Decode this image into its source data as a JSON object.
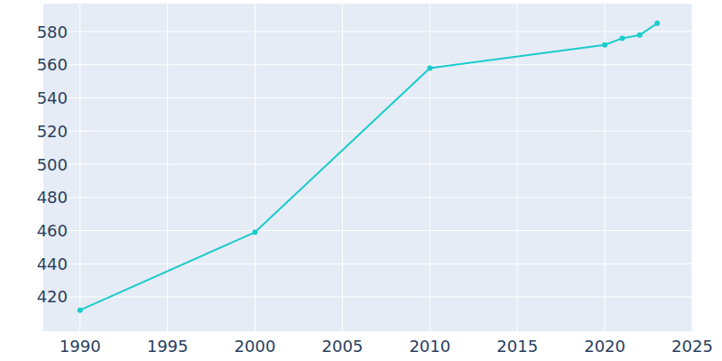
{
  "chart_data": {
    "type": "line",
    "x": [
      1990,
      2000,
      2010,
      2020,
      2021,
      2022,
      2023
    ],
    "values": [
      412,
      459,
      558,
      572,
      576,
      578,
      585
    ],
    "color": "#1ccbcb",
    "marker": "circle",
    "xlim": [
      1987.9,
      2025
    ],
    "xticks": [
      1990,
      1995,
      2000,
      2005,
      2010,
      2015,
      2020,
      2025
    ],
    "ylim": [
      399.3,
      596.9
    ],
    "yticks": [
      420,
      440,
      460,
      480,
      500,
      520,
      540,
      560,
      580
    ],
    "grid": true
  }
}
